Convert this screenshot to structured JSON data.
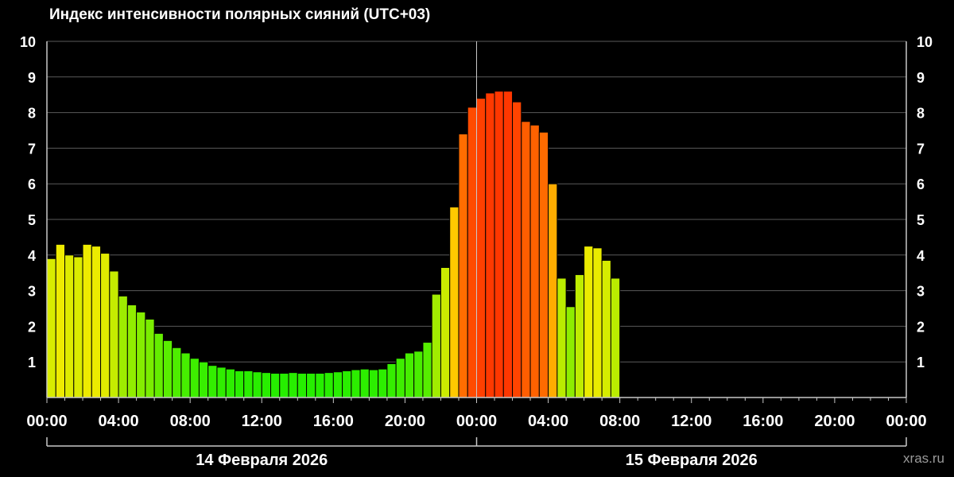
{
  "title": "Индекс интенсивности полярных сияний (UTC+03)",
  "watermark": "xras.ru",
  "colors": {
    "background": "#000000",
    "grid": "#5a5a5a",
    "axis": "#c8c8c8",
    "bar_outline": "#000000",
    "low": "#22ee00",
    "high": "#ff3300"
  },
  "chart_data": {
    "type": "bar",
    "title": "Индекс интенсивности полярных сияний (UTC+03)",
    "xlabel": "",
    "ylabel": "",
    "ylim": [
      0,
      10
    ],
    "yticks": [
      "1",
      "2",
      "3",
      "4",
      "5",
      "6",
      "7",
      "8",
      "9",
      "10"
    ],
    "grid": true,
    "legend": "none",
    "x_start": "00:00 14 Февраля 2026",
    "x_span_hours": 48,
    "bar_interval_minutes": 30,
    "xtick_labels": [
      "00:00",
      "04:00",
      "08:00",
      "12:00",
      "16:00",
      "20:00",
      "00:00",
      "04:00",
      "08:00",
      "12:00",
      "16:00",
      "20:00",
      "00:00"
    ],
    "date_labels": [
      "14 Февраля 2026",
      "15 Февраля 2026"
    ],
    "values": [
      3.9,
      4.3,
      4.0,
      3.95,
      4.3,
      4.25,
      4.05,
      3.55,
      2.85,
      2.6,
      2.4,
      2.2,
      1.8,
      1.6,
      1.4,
      1.25,
      1.1,
      1.0,
      0.9,
      0.85,
      0.8,
      0.75,
      0.75,
      0.72,
      0.7,
      0.68,
      0.68,
      0.7,
      0.68,
      0.68,
      0.68,
      0.7,
      0.72,
      0.75,
      0.78,
      0.8,
      0.78,
      0.8,
      0.95,
      1.1,
      1.25,
      1.3,
      1.55,
      2.9,
      3.65,
      5.35,
      7.4,
      8.15,
      8.4,
      8.55,
      8.6,
      8.6,
      8.3,
      7.75,
      7.65,
      7.45,
      6.0,
      3.35,
      2.55,
      3.45,
      4.25,
      4.2,
      3.85,
      3.35
    ]
  }
}
